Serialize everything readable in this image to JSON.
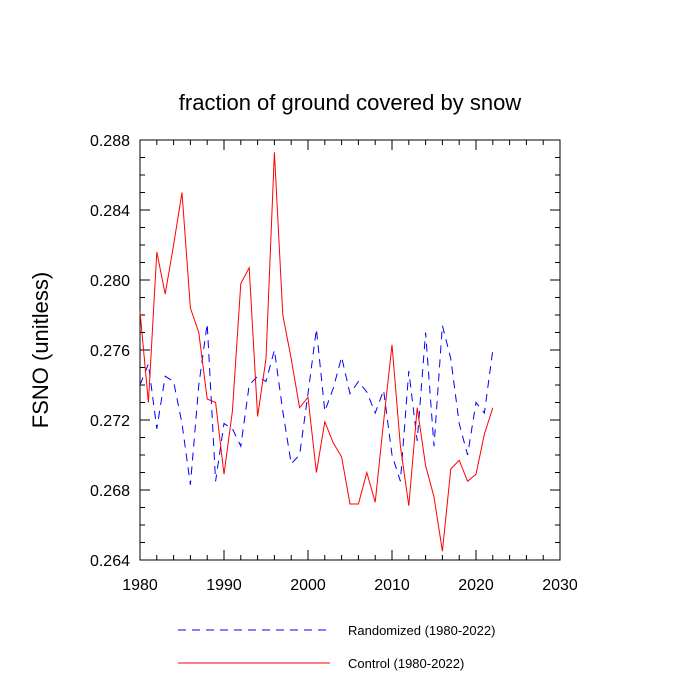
{
  "chart_data": {
    "type": "line",
    "title": "fraction of ground covered by snow",
    "xlabel": "",
    "ylabel": "FSNO  (unitless)",
    "xlim": [
      1980,
      2030
    ],
    "ylim": [
      0.264,
      0.288
    ],
    "xticks": [
      1980,
      1990,
      2000,
      2010,
      2020,
      2030
    ],
    "xtick_labels": [
      "1980",
      "1990",
      "2000",
      "2010",
      "2020",
      "2030"
    ],
    "yticks": [
      0.264,
      0.268,
      0.272,
      0.276,
      0.28,
      0.284,
      0.288
    ],
    "ytick_labels": [
      "0.264",
      "0.268",
      "0.272",
      "0.276",
      "0.280",
      "0.284",
      "0.288"
    ],
    "grid": false,
    "legend_position": "bottom",
    "x": [
      1980,
      1981,
      1982,
      1983,
      1984,
      1985,
      1986,
      1987,
      1988,
      1989,
      1990,
      1991,
      1992,
      1993,
      1994,
      1995,
      1996,
      1997,
      1998,
      1999,
      2000,
      2001,
      2002,
      2003,
      2004,
      2005,
      2006,
      2007,
      2008,
      2009,
      2010,
      2011,
      2012,
      2013,
      2014,
      2015,
      2016,
      2017,
      2018,
      2019,
      2020,
      2021,
      2022
    ],
    "series": [
      {
        "name": "Randomized (1980-2022)",
        "color": "#0000ff",
        "dash": "dashed",
        "values": [
          0.274,
          0.2752,
          0.2715,
          0.2745,
          0.2742,
          0.2718,
          0.2683,
          0.274,
          0.2775,
          0.2685,
          0.2718,
          0.2715,
          0.2705,
          0.274,
          0.2745,
          0.2742,
          0.276,
          0.2725,
          0.2695,
          0.27,
          0.2735,
          0.2772,
          0.2725,
          0.2738,
          0.2756,
          0.2735,
          0.2742,
          0.2736,
          0.2724,
          0.2737,
          0.27,
          0.2685,
          0.2748,
          0.2708,
          0.277,
          0.2705,
          0.2774,
          0.2755,
          0.2718,
          0.27,
          0.273,
          0.2724,
          0.276
        ]
      },
      {
        "name": "Control (1980-2022)",
        "color": "#ff0000",
        "dash": "solid",
        "values": [
          0.2782,
          0.273,
          0.2816,
          0.2792,
          0.282,
          0.285,
          0.2784,
          0.277,
          0.2732,
          0.273,
          0.2689,
          0.2725,
          0.2798,
          0.2807,
          0.2722,
          0.2755,
          0.2873,
          0.278,
          0.2755,
          0.2727,
          0.2733,
          0.269,
          0.2719,
          0.2707,
          0.2699,
          0.2672,
          0.2672,
          0.269,
          0.2673,
          0.2719,
          0.2763,
          0.2705,
          0.2671,
          0.2727,
          0.2694,
          0.2676,
          0.2645,
          0.2692,
          0.2697,
          0.2685,
          0.2689,
          0.2712,
          0.2727
        ]
      }
    ]
  }
}
